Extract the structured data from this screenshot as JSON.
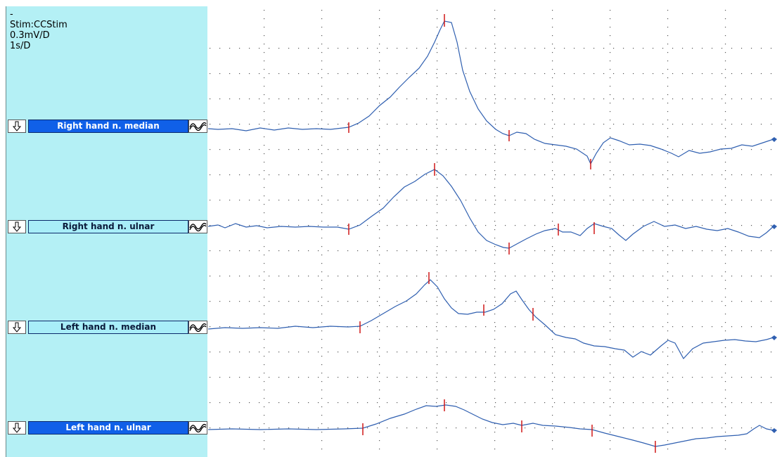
{
  "info": {
    "dash": "-",
    "stim": "Stim:CCStim",
    "sensitivity": "0.3mV/D",
    "timebase": "1s/D"
  },
  "channels": [
    {
      "label": "Right hand n. median",
      "style": "dark",
      "trace_color": "#2f5fb0"
    },
    {
      "label": "Right hand n. ulnar",
      "style": "light",
      "trace_color": "#2f5fb0"
    },
    {
      "label": "Left hand n. median",
      "style": "light",
      "trace_color": "#2f5fb0"
    },
    {
      "label": "Left hand n. ulnar",
      "style": "dark",
      "trace_color": "#2f5fb0"
    }
  ],
  "icons": {
    "collapse": "down-arrow-icon",
    "waveform": "waveform-icon",
    "channel_end": "diamond-marker-icon"
  },
  "colors": {
    "panel": "#b4f0f5",
    "trace": "#2f5fb0",
    "marker": "#d01818",
    "grid_dot": "#555555"
  }
}
